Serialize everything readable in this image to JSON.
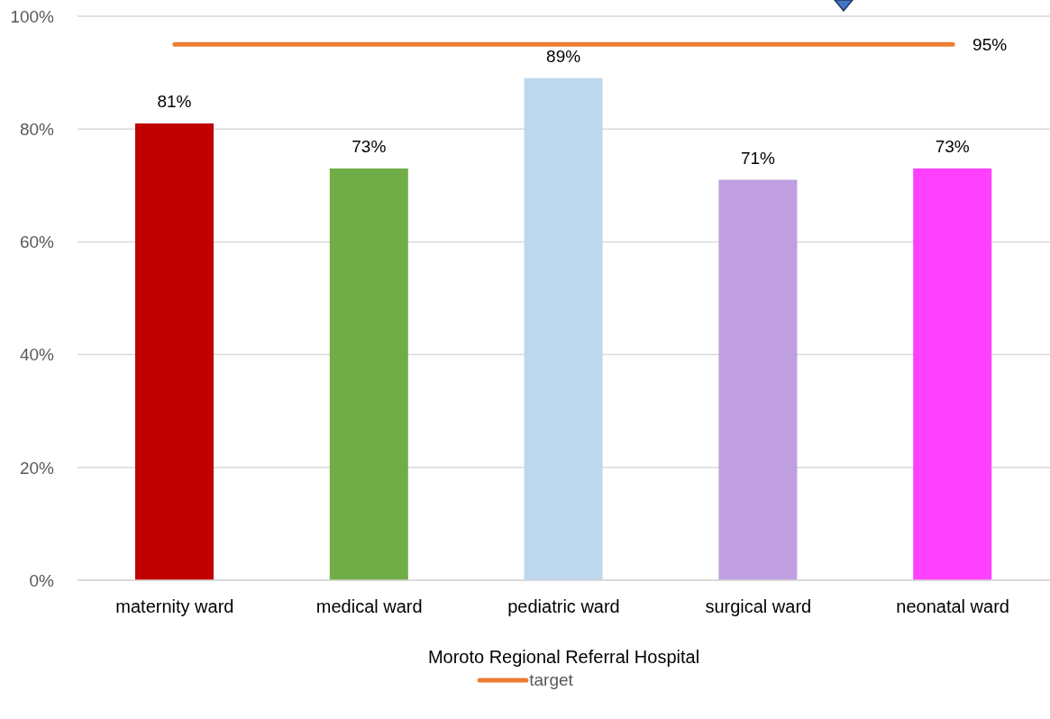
{
  "chart_data": {
    "type": "bar",
    "xlabel": "Moroto Regional Referral Hospital",
    "categories": [
      "maternity ward",
      "medical ward",
      "pediatric ward",
      "surgical ward",
      "neonatal ward"
    ],
    "series": [
      {
        "colors": [
          "#c00000",
          "#70ad47",
          "#bdd7ee",
          "#bf9fdf",
          "#ff40ff"
        ],
        "values": [
          81,
          73,
          89,
          71,
          73
        ],
        "value_labels": [
          "81%",
          "73%",
          "89%",
          "71%",
          "73%"
        ]
      },
      {
        "type": "line",
        "name": "target",
        "color": "#ed7d31",
        "values": [
          95,
          95,
          95,
          95,
          95
        ],
        "value_labels": [
          null,
          null,
          null,
          null,
          "95%"
        ]
      }
    ],
    "ylim": [
      0,
      100
    ],
    "yticks": [
      {
        "value": 0,
        "label": "0%"
      },
      {
        "value": 20,
        "label": "20%"
      },
      {
        "value": 40,
        "label": "40%"
      },
      {
        "value": 60,
        "label": "60%"
      },
      {
        "value": 80,
        "label": "80%"
      },
      {
        "value": 100,
        "label": "100%"
      }
    ],
    "grid": "y",
    "legend": "bottom",
    "marker": "none"
  }
}
